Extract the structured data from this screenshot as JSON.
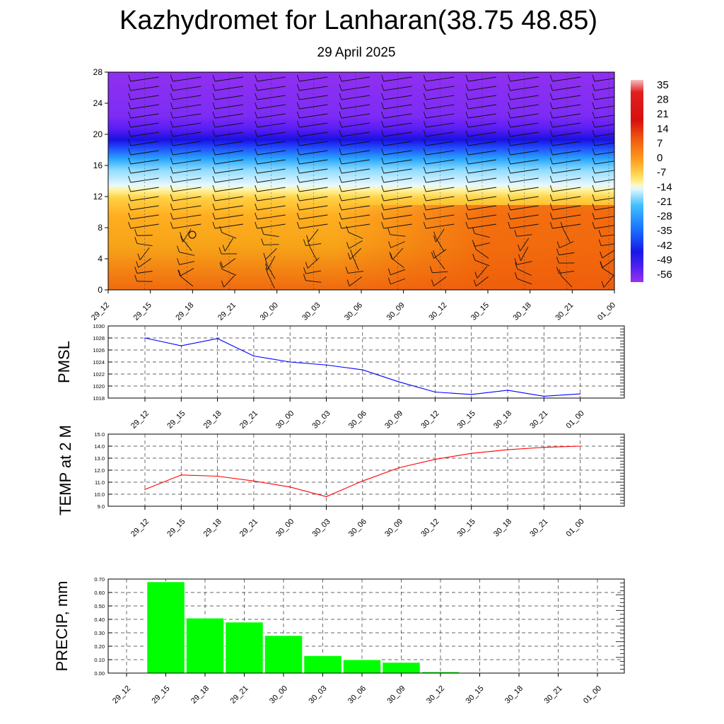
{
  "title": "Kazhydromet for Lanharan(38.75 48.85)",
  "subtitle": "29 April 2025",
  "time_labels": [
    "29_12",
    "29_15",
    "29_18",
    "29_21",
    "30_00",
    "30_03",
    "30_06",
    "30_09",
    "30_12",
    "30_15",
    "30_18",
    "30_21",
    "01_00"
  ],
  "chart_data": [
    {
      "type": "heatmap",
      "x": [
        "29_12",
        "29_15",
        "29_18",
        "29_21",
        "30_00",
        "30_03",
        "30_06",
        "30_09",
        "30_12",
        "30_15",
        "30_18",
        "30_21",
        "01_00"
      ],
      "ylim": [
        0,
        28
      ],
      "yticks": [
        0,
        4,
        8,
        12,
        16,
        20,
        24,
        28
      ],
      "colorbar_labels": [
        "35",
        "28",
        "21",
        "14",
        "7",
        "0",
        "-7",
        "-14",
        "-21",
        "-28",
        "-35",
        "-42",
        "-49",
        "-56"
      ],
      "overlay": "wind barbs"
    },
    {
      "type": "line",
      "ylabel": "PMSL",
      "x": [
        "29_12",
        "29_15",
        "29_18",
        "29_21",
        "30_00",
        "30_03",
        "30_06",
        "30_09",
        "30_12",
        "30_15",
        "30_18",
        "30_21",
        "01_00"
      ],
      "values": [
        1028.0,
        1026.7,
        1027.9,
        1025.0,
        1024.0,
        1023.5,
        1022.7,
        1020.7,
        1019.0,
        1018.6,
        1019.3,
        1018.3,
        1018.7
      ],
      "ylim": [
        1018,
        1030
      ],
      "yticks": [
        "1018",
        "1020",
        "1022",
        "1024",
        "1026",
        "1028",
        "1030"
      ],
      "color": "#0000ff",
      "grid": true
    },
    {
      "type": "line",
      "ylabel": "TEMP at 2 M",
      "x": [
        "29_12",
        "29_15",
        "29_18",
        "29_21",
        "30_00",
        "30_03",
        "30_06",
        "30_09",
        "30_12",
        "30_15",
        "30_18",
        "30_21",
        "01_00"
      ],
      "values": [
        10.4,
        11.6,
        11.5,
        11.1,
        10.6,
        9.8,
        11.1,
        12.2,
        12.9,
        13.4,
        13.7,
        13.9,
        14.0
      ],
      "ylim": [
        9.0,
        15.0
      ],
      "yticks": [
        "9.0",
        "10.0",
        "11.0",
        "12.0",
        "13.0",
        "14.0",
        "15.0"
      ],
      "color": "#ff0000",
      "grid": true
    },
    {
      "type": "bar",
      "ylabel": "PRECIP, mm",
      "categories": [
        "29_12",
        "29_15",
        "29_18",
        "29_21",
        "30_00",
        "30_03",
        "30_06",
        "30_09",
        "30_12",
        "30_15",
        "30_18",
        "30_21",
        "01_00"
      ],
      "values": [
        0,
        0.68,
        0.41,
        0.38,
        0.28,
        0.13,
        0.1,
        0.08,
        0.01,
        0,
        0,
        0,
        0
      ],
      "ylim": [
        0,
        0.7
      ],
      "yticks": [
        "0.00",
        "0.10",
        "0.20",
        "0.30",
        "0.40",
        "0.50",
        "0.60",
        "0.70"
      ],
      "color": "#00ff00",
      "grid": true
    }
  ],
  "colors": {
    "heat_top": "#8b2cf0",
    "heat_band": "#1010e8",
    "heat_cyan": "#38c6ff",
    "heat_yellow": "#fff0a0",
    "heat_orange": "#f59b10",
    "heat_red": "#f05a0a"
  }
}
